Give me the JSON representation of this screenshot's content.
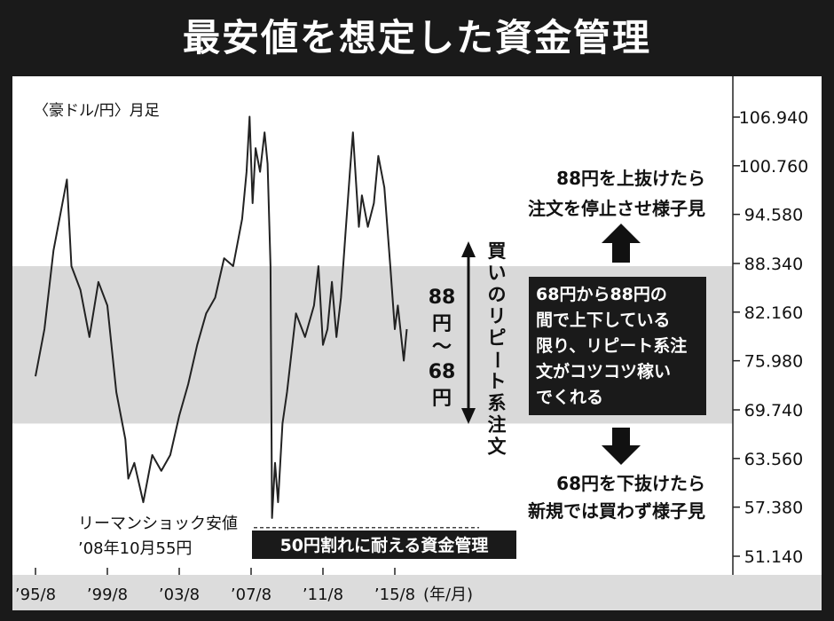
{
  "header": {
    "title": "最安値を想定した資金管理"
  },
  "chart_data": {
    "type": "line",
    "series_label": "〈豪ドル/円〉月足",
    "y_ticks": [
      "106.940",
      "100.760",
      "94.580",
      "88.340",
      "82.160",
      "75.980",
      "69.740",
      "63.560",
      "57.380",
      "51.140"
    ],
    "ylim": [
      51.14,
      106.94
    ],
    "x_ticks": [
      "’95/8",
      "’99/8",
      "’03/8",
      "’07/8",
      "’11/8",
      "’15/8"
    ],
    "x_unit": "(年/月)",
    "band": {
      "from": 68,
      "to": 88
    },
    "series": [
      {
        "x": [
          "1995-08",
          "1996-02",
          "1996-08",
          "1997-02",
          "1997-05",
          "1997-08",
          "1998-02",
          "1998-08",
          "1999-02",
          "1999-08",
          "2000-02",
          "2000-08",
          "2000-10",
          "2001-02",
          "2001-08",
          "2002-02",
          "2002-08",
          "2003-02",
          "2003-08",
          "2004-02",
          "2004-08",
          "2005-02",
          "2005-08",
          "2006-02",
          "2006-08",
          "2007-02",
          "2007-05",
          "2007-07",
          "2007-09",
          "2007-11",
          "2008-02",
          "2008-05",
          "2008-07",
          "2008-09",
          "2008-10",
          "2008-12",
          "2009-02",
          "2009-05",
          "2009-08",
          "2010-02",
          "2010-08",
          "2011-02",
          "2011-05",
          "2011-08",
          "2011-11",
          "2012-02",
          "2012-05",
          "2012-08",
          "2012-11",
          "2013-02",
          "2013-04",
          "2013-06",
          "2013-08",
          "2013-10",
          "2014-02",
          "2014-06",
          "2014-09",
          "2015-01",
          "2015-05",
          "2015-08",
          "2015-10",
          "2016-02",
          "2016-04"
        ],
        "values": [
          74,
          80,
          90,
          96,
          99,
          88,
          85,
          79,
          86,
          83,
          72,
          66,
          61,
          63,
          58,
          64,
          62,
          64,
          69,
          73,
          78,
          82,
          84,
          89,
          88,
          94,
          100,
          107,
          96,
          103,
          100,
          105,
          101,
          88,
          56,
          63,
          58,
          68,
          72,
          82,
          79,
          83,
          88,
          78,
          80,
          86,
          79,
          84,
          92,
          100,
          105,
          99,
          93,
          97,
          93,
          96,
          102,
          98,
          88,
          80,
          83,
          76,
          80
        ]
      }
    ],
    "annotations": {
      "low_line1": "リーマンショック安値",
      "low_line2": "’08年10月55円",
      "box_50": "50円割れに耐える資金管理",
      "range_label": [
        "88",
        "円",
        "〜",
        "68",
        "円"
      ],
      "repeat_label": "買いのリピート系注文",
      "upper_text": [
        "88円を上抜けたら",
        "注文を停止させ様子見"
      ],
      "middle_box": [
        "68円から88円の",
        "間で上下している",
        "限り、リピート系注",
        "文がコツコツ稼い",
        "でくれる"
      ],
      "lower_text": [
        "68円を下抜けたら",
        "新規では買わず様子見"
      ]
    }
  }
}
